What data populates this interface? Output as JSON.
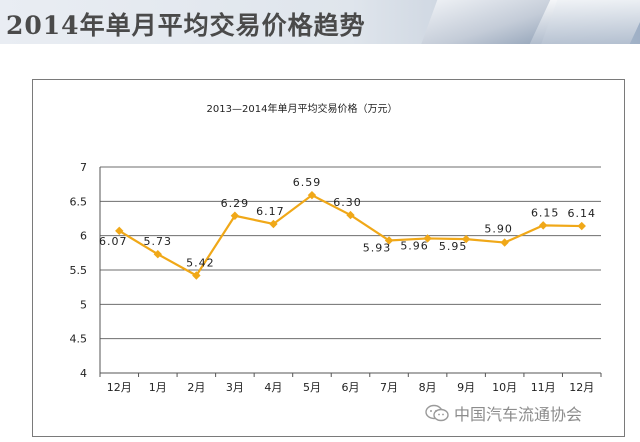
{
  "banner": {
    "title": "2014年单月平均交易价格趋势"
  },
  "watermark": {
    "text": "中国汽车流通协会",
    "icon": "wechat-icon"
  },
  "chart_data": {
    "type": "line",
    "title": "2013—2014年单月平均交易价格（万元）",
    "categories": [
      "12月",
      "1月",
      "2月",
      "3月",
      "4月",
      "5月",
      "6月",
      "7月",
      "8月",
      "9月",
      "10月",
      "11月",
      "12月"
    ],
    "values": [
      6.07,
      5.73,
      5.42,
      6.29,
      6.17,
      6.59,
      6.3,
      5.93,
      5.96,
      5.95,
      5.9,
      6.15,
      6.14
    ],
    "data_labels": [
      "6.07",
      "5.73",
      "5.42",
      "6.29",
      "6.17",
      "6.59",
      "6.30",
      "5.93",
      "5.96",
      "5.95",
      "5.90",
      "6.15",
      "6.14"
    ],
    "ylim": [
      4,
      7
    ],
    "yticks": [
      "4",
      "4.5",
      "5",
      "5.5",
      "6",
      "6.5",
      "7"
    ],
    "grid": true,
    "legend": "none",
    "color": "#f0a818"
  }
}
